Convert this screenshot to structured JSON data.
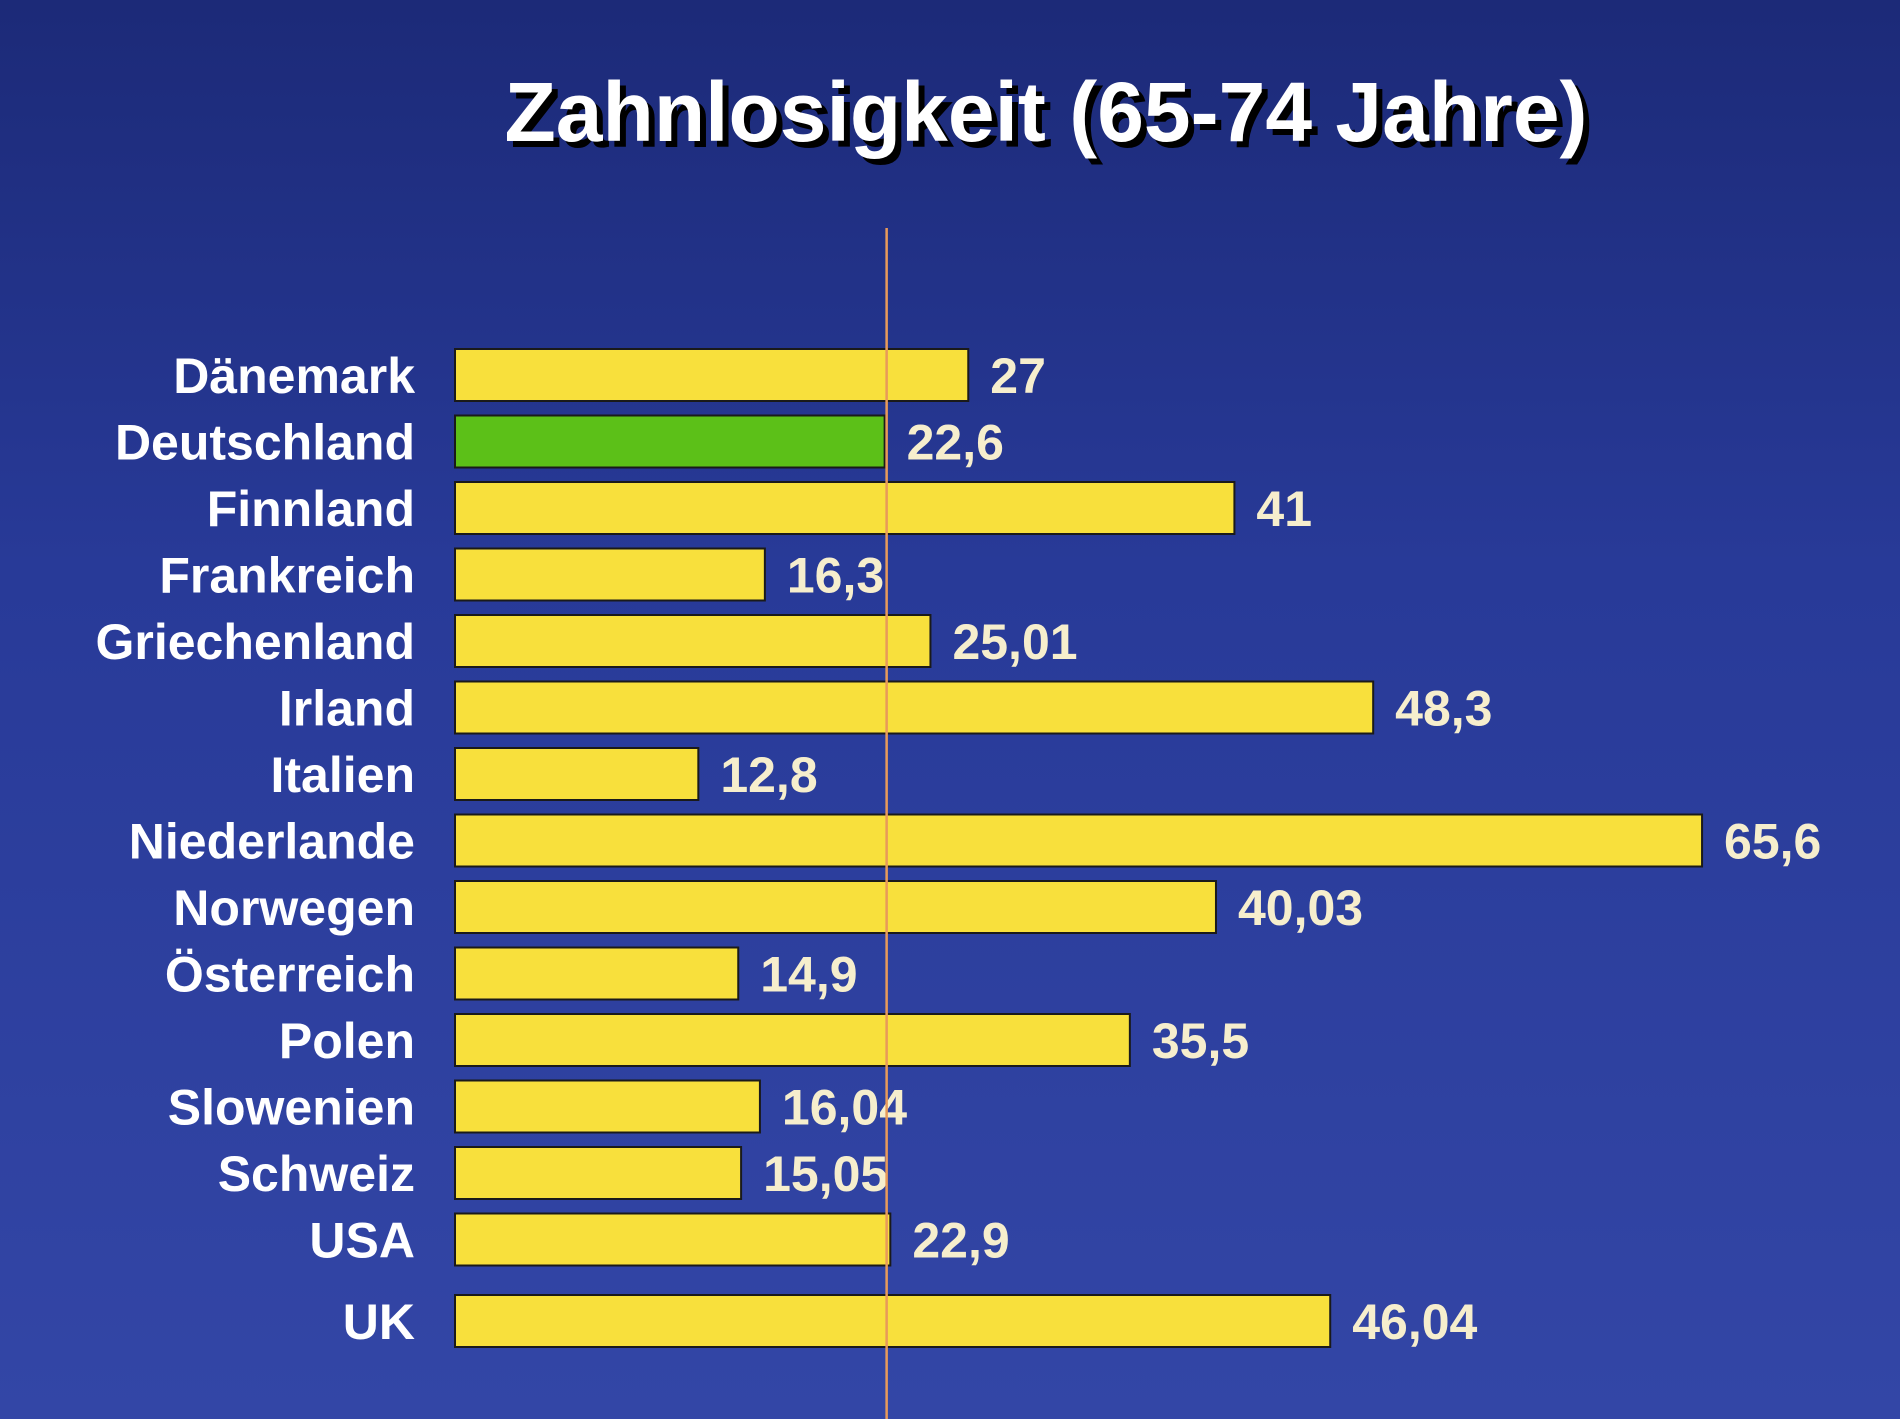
{
  "chart_data": {
    "type": "bar",
    "orientation": "horizontal",
    "title": "Zahnlosigkeit (65-74 Jahre)",
    "categories": [
      "Dänemark",
      "Deutschland",
      "Finnland",
      "Frankreich",
      "Griechenland",
      "Irland",
      "Italien",
      "Niederlande",
      "Norwegen",
      "Österreich",
      "Polen",
      "Slowenien",
      "Schweiz",
      "USA",
      "UK"
    ],
    "values": [
      27,
      22.6,
      41,
      16.3,
      25.01,
      48.3,
      12.8,
      65.6,
      40.03,
      14.9,
      35.5,
      16.04,
      15.05,
      22.9,
      46.04
    ],
    "value_labels": [
      "27",
      "22,6",
      "41",
      "16,3",
      "25,01",
      "48,3",
      "12,8",
      "65,6",
      "40,03",
      "14,9",
      "35,5",
      "16,04",
      "15,05",
      "22,9",
      "46,04"
    ],
    "highlight_category": "Deutschland",
    "reference_value": 22.6,
    "xlim": [
      0,
      65.6
    ],
    "grid": false,
    "legend": "none",
    "colors": {
      "bar": "#f8e03c",
      "highlight": "#5cc018",
      "reference_line": "#e89a5a",
      "bar_outline": "#1a1a1a"
    }
  }
}
